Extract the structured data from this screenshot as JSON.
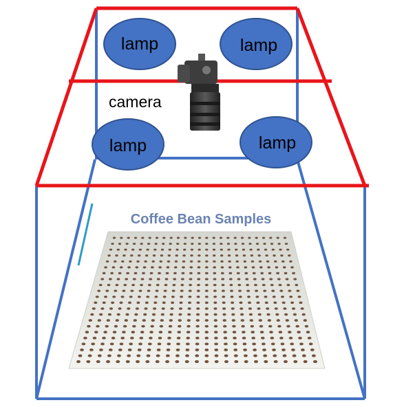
{
  "diagram": {
    "lamp_labels": [
      "lamp",
      "lamp",
      "lamp",
      "lamp"
    ],
    "camera_label": "camera",
    "tray_title": "Coffee Bean Samples",
    "bean_grid": {
      "rows": 22,
      "cols": 25
    }
  },
  "colors": {
    "frame_red": "#e8151b",
    "box_blue": "#4472c4",
    "lamp_fill": "#4472c4",
    "lamp_stroke": "#2f528f",
    "tray_title": "#5a76a8",
    "tray_paper": "#e9e9e4",
    "bean": "#5a3a22",
    "camera_body": "#3b3b3b"
  }
}
